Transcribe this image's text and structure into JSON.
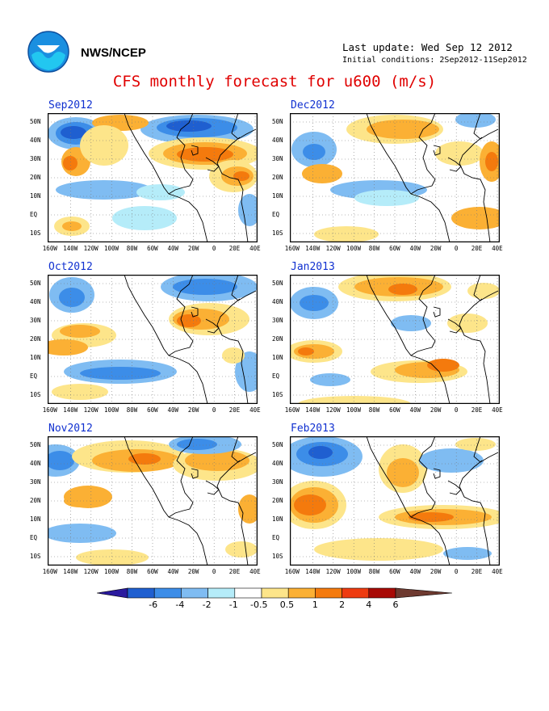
{
  "header": {
    "agency": "NWS/NCEP",
    "last_update": "Last update: Wed Sep 12 2012",
    "initial_conditions": "Initial conditions: 2Sep2012-11Sep2012",
    "title": "CFS monthly forecast for u600 (m/s)"
  },
  "panels": [
    {
      "label": "Sep2012"
    },
    {
      "label": "Oct2012"
    },
    {
      "label": "Nov2012"
    },
    {
      "label": "Dec2012"
    },
    {
      "label": "Jan2013"
    },
    {
      "label": "Feb2013"
    }
  ],
  "axes": {
    "lat_labels": [
      "50N",
      "40N",
      "30N",
      "20N",
      "10N",
      "EQ",
      "10S"
    ],
    "lon_labels": [
      "160W",
      "140W",
      "120W",
      "100W",
      "80W",
      "60W",
      "40W",
      "20W",
      "0",
      "20E",
      "40E"
    ]
  },
  "colorbar": {
    "labels": [
      "-6",
      "-4",
      "-2",
      "-1",
      "-0.5",
      "0.5",
      "1",
      "2",
      "4",
      "6"
    ],
    "colors": [
      "#2a1a9e",
      "#1f5fd0",
      "#3c8de8",
      "#7fbcf2",
      "#b5ecf9",
      "#ffffff",
      "#fde58a",
      "#fbb034",
      "#f47a0d",
      "#ee3b10",
      "#a80a06",
      "#6e3a30"
    ]
  }
}
